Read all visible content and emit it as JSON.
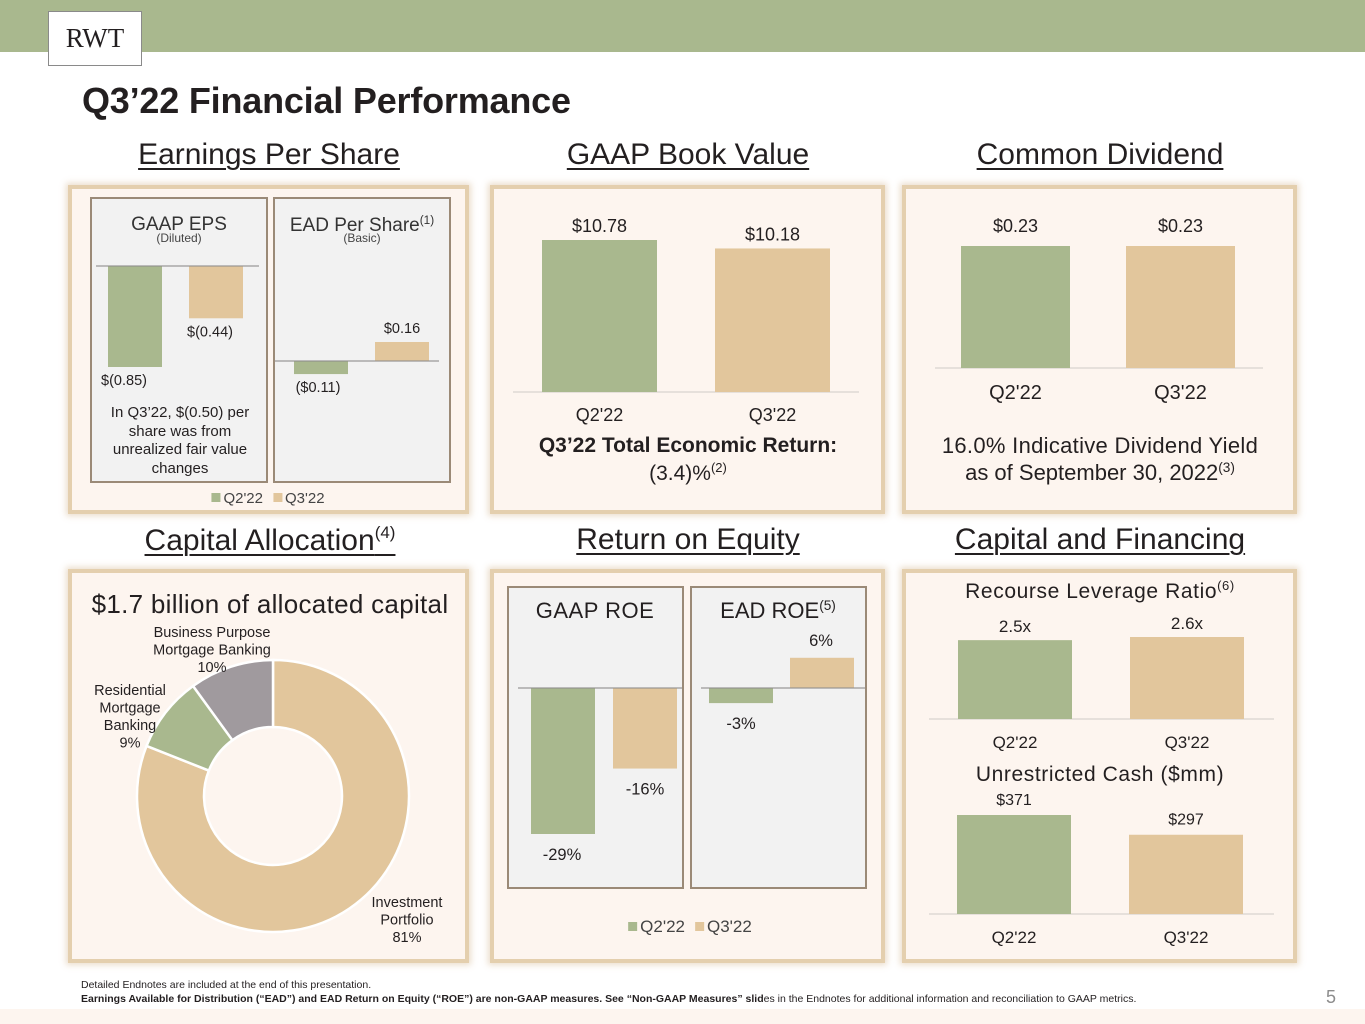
{
  "header": {
    "logo_text": "RWT",
    "title": "Q3’22 Financial Performance"
  },
  "colors": {
    "q2": "#a9b88e",
    "q3": "#e2c69c",
    "gray_slice": "#a09a9e",
    "panel_bg": "#fdf5ef",
    "panel_border": "#e4cfae",
    "band": "#a9b88e"
  },
  "sections": {
    "eps": {
      "title": "Earnings Per Share",
      "gaap_title": "GAAP EPS",
      "gaap_subtitle": "(Diluted)",
      "ead_title": "EAD Per Share",
      "ead_sup": "(1)",
      "ead_subtitle": "(Basic)",
      "note": [
        "In Q3’22, $(0.50) per",
        "share was from",
        "unrealized fair value",
        "changes"
      ],
      "legend": [
        "Q2'22",
        "Q3'22"
      ]
    },
    "book_value": {
      "title": "GAAP Book Value",
      "ter_label": "Q3’22 Total Economic Return:",
      "ter_value": "(3.4)%",
      "ter_sup": "(2)"
    },
    "dividend": {
      "title": "Common Dividend",
      "yield_line1": "16.0% Indicative Dividend Yield",
      "yield_line2": "as of September 30, 2022",
      "yield_sup": "(3)"
    },
    "capital_allocation": {
      "title": "Capital Allocation",
      "title_sup": "(4)",
      "subtitle": "$1.7 billion of allocated capital"
    },
    "roe": {
      "title": "Return on Equity",
      "gaap_title": "GAAP ROE",
      "ead_title": "EAD ROE",
      "ead_sup": "(5)",
      "legend": [
        "Q2'22",
        "Q3'22"
      ]
    },
    "financing": {
      "title": "Capital and Financing",
      "leverage_title": "Recourse Leverage Ratio",
      "leverage_sup": "(6)",
      "cash_title": "Unrestricted Cash ($mm)"
    }
  },
  "footer": {
    "line1": "Detailed Endnotes are included at the end of this presentation.",
    "line2_bold": "Earnings Available for Distribution (“EAD”) and EAD Return on Equity (“ROE”) are non-GAAP measures. See “Non-GAAP Measures” slid",
    "line2_rest": "es in the Endnotes for additional information and reconciliation to GAAP metrics.",
    "page_number": "5"
  },
  "chart_data": [
    {
      "id": "gaap_eps",
      "type": "bar",
      "title": "GAAP EPS (Diluted)",
      "categories": [
        "Q2'22",
        "Q3'22"
      ],
      "values": [
        -0.85,
        -0.44
      ],
      "labels": [
        "$(0.85)",
        "$(0.44)"
      ],
      "ylim": [
        -0.85,
        0
      ]
    },
    {
      "id": "ead_per_share",
      "type": "bar",
      "title": "EAD Per Share (Basic)",
      "categories": [
        "Q2'22",
        "Q3'22"
      ],
      "values": [
        -0.11,
        0.16
      ],
      "labels": [
        "($0.11)",
        "$0.16"
      ],
      "ylim": [
        -0.85,
        0.16
      ]
    },
    {
      "id": "book_value",
      "type": "bar",
      "title": "GAAP Book Value",
      "categories": [
        "Q2'22",
        "Q3'22"
      ],
      "values": [
        10.78,
        10.18
      ],
      "labels": [
        "$10.78",
        "$10.18"
      ],
      "ylim": [
        0,
        10.78
      ]
    },
    {
      "id": "dividend",
      "type": "bar",
      "title": "Common Dividend",
      "categories": [
        "Q2'22",
        "Q3'22"
      ],
      "values": [
        0.23,
        0.23
      ],
      "labels": [
        "$0.23",
        "$0.23"
      ],
      "ylim": [
        0,
        0.23
      ]
    },
    {
      "id": "capital_allocation",
      "type": "pie",
      "title": "$1.7 billion of allocated capital",
      "slices": [
        {
          "name": "Investment Portfolio",
          "value": 81,
          "label": "81%"
        },
        {
          "name": "Residential Mortgage Banking",
          "value": 9,
          "label": "9%"
        },
        {
          "name": "Business Purpose Mortgage Banking",
          "value": 10,
          "label": "10%"
        }
      ]
    },
    {
      "id": "gaap_roe",
      "type": "bar",
      "title": "GAAP ROE",
      "categories": [
        "Q2'22",
        "Q3'22"
      ],
      "values": [
        -29,
        -16
      ],
      "labels": [
        "-29%",
        "-16%"
      ],
      "ylim": [
        -29,
        0
      ]
    },
    {
      "id": "ead_roe",
      "type": "bar",
      "title": "EAD ROE",
      "categories": [
        "Q2'22",
        "Q3'22"
      ],
      "values": [
        -3,
        6
      ],
      "labels": [
        "-3%",
        "6%"
      ],
      "ylim": [
        -29,
        6
      ]
    },
    {
      "id": "leverage",
      "type": "bar",
      "title": "Recourse Leverage Ratio",
      "categories": [
        "Q2'22",
        "Q3'22"
      ],
      "values": [
        2.5,
        2.6
      ],
      "labels": [
        "2.5x",
        "2.6x"
      ],
      "ylim": [
        0,
        2.6
      ]
    },
    {
      "id": "cash",
      "type": "bar",
      "title": "Unrestricted Cash ($mm)",
      "categories": [
        "Q2'22",
        "Q3'22"
      ],
      "values": [
        371,
        297
      ],
      "labels": [
        "$371",
        "$297"
      ],
      "ylim": [
        0,
        371
      ]
    }
  ]
}
